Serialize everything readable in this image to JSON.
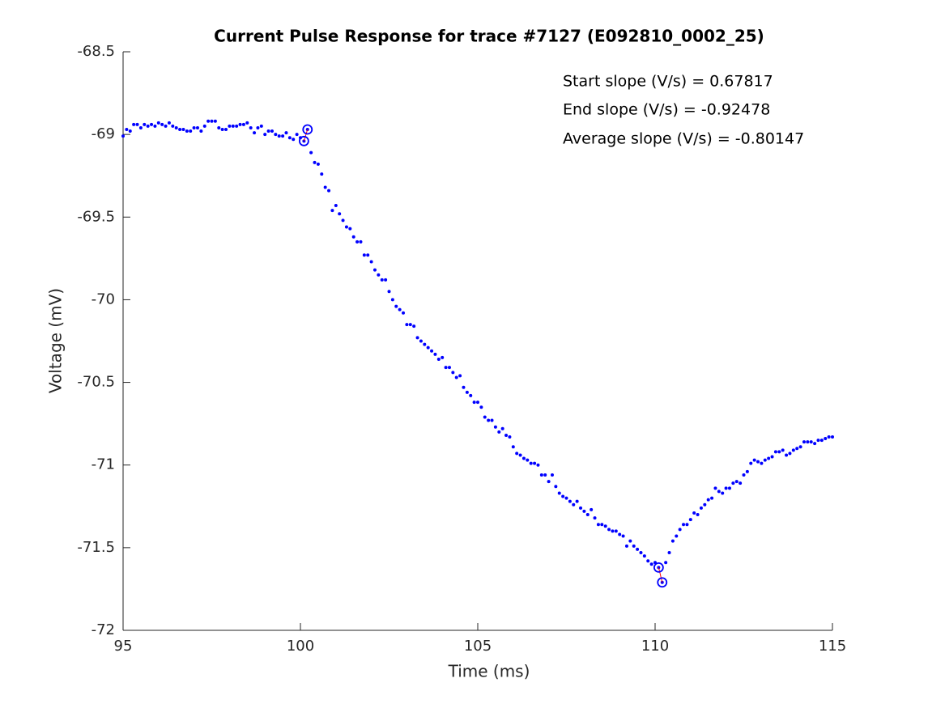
{
  "chart_data": {
    "type": "scatter",
    "title": "Current Pulse Response for trace #7127 (E092810_0002_25)",
    "xlabel": "Time (ms)",
    "ylabel": "Voltage (mV)",
    "annotations": [
      "Start slope (V/s) = 0.67817",
      "End slope (V/s) = -0.92478",
      "Average slope (V/s) = -0.80147"
    ],
    "xlim": [
      95,
      115
    ],
    "xticks": [
      95,
      100,
      105,
      110,
      115
    ],
    "ylim": [
      -72,
      -68.5
    ],
    "yticks": [
      -68.5,
      -69,
      -69.5,
      -70,
      -70.5,
      -71,
      -71.5,
      -72
    ],
    "grid": false,
    "series": [
      {
        "color": "#0000ff",
        "marker": "dot",
        "x": [
          95.0,
          95.1,
          95.2,
          95.3,
          95.4,
          95.5,
          95.6,
          95.7,
          95.8,
          95.9,
          96.0,
          96.1,
          96.2,
          96.3,
          96.4,
          96.5,
          96.6,
          96.7,
          96.8,
          96.9,
          97.0,
          97.1,
          97.2,
          97.3,
          97.4,
          97.5,
          97.6,
          97.7,
          97.8,
          97.9,
          98.0,
          98.1,
          98.2,
          98.3,
          98.4,
          98.5,
          98.6,
          98.7,
          98.8,
          98.9,
          99.0,
          99.1,
          99.2,
          99.3,
          99.4,
          99.5,
          99.6,
          99.7,
          99.8,
          99.9,
          100.0,
          100.1,
          100.2,
          100.3,
          100.4,
          100.5,
          100.6,
          100.7,
          100.8,
          100.9,
          101.0,
          101.1,
          101.2,
          101.3,
          101.4,
          101.5,
          101.6,
          101.7,
          101.8,
          101.9,
          102.0,
          102.1,
          102.2,
          102.3,
          102.4,
          102.5,
          102.6,
          102.7,
          102.8,
          102.9,
          103.0,
          103.1,
          103.2,
          103.3,
          103.4,
          103.5,
          103.6,
          103.7,
          103.8,
          103.9,
          104.0,
          104.1,
          104.2,
          104.3,
          104.4,
          104.5,
          104.6,
          104.7,
          104.8,
          104.9,
          105.0,
          105.1,
          105.2,
          105.3,
          105.4,
          105.5,
          105.6,
          105.7,
          105.8,
          105.9,
          106.0,
          106.1,
          106.2,
          106.3,
          106.4,
          106.5,
          106.6,
          106.7,
          106.8,
          106.9,
          107.0,
          107.1,
          107.2,
          107.3,
          107.4,
          107.5,
          107.6,
          107.7,
          107.8,
          107.9,
          108.0,
          108.1,
          108.2,
          108.3,
          108.4,
          108.5,
          108.6,
          108.7,
          108.8,
          108.9,
          109.0,
          109.1,
          109.2,
          109.3,
          109.4,
          109.5,
          109.6,
          109.7,
          109.8,
          109.9,
          110.0,
          110.1,
          110.2,
          110.3,
          110.4,
          110.5,
          110.6,
          110.7,
          110.8,
          110.9,
          111.0,
          111.1,
          111.2,
          111.3,
          111.4,
          111.5,
          111.6,
          111.7,
          111.8,
          111.9,
          112.0,
          112.1,
          112.2,
          112.3,
          112.4,
          112.5,
          112.6,
          112.7,
          112.8,
          112.9,
          113.0,
          113.1,
          113.2,
          113.3,
          113.4,
          113.5,
          113.6,
          113.7,
          113.8,
          113.9,
          114.0,
          114.1,
          114.2,
          114.3,
          114.4,
          114.5,
          114.6,
          114.7,
          114.8,
          114.9,
          115.0
        ],
        "values": [
          -69.01,
          -68.97,
          -68.98,
          -68.94,
          -68.94,
          -68.96,
          -68.94,
          -68.95,
          -68.94,
          -68.95,
          -68.93,
          -68.94,
          -68.95,
          -68.93,
          -68.95,
          -68.96,
          -68.97,
          -68.97,
          -68.98,
          -68.98,
          -68.96,
          -68.96,
          -68.98,
          -68.95,
          -68.92,
          -68.92,
          -68.92,
          -68.96,
          -68.97,
          -68.97,
          -68.95,
          -68.95,
          -68.95,
          -68.94,
          -68.94,
          -68.93,
          -68.96,
          -68.99,
          -68.96,
          -68.95,
          -69.0,
          -68.98,
          -68.98,
          -69.0,
          -69.01,
          -69.01,
          -68.99,
          -69.02,
          -69.03,
          -69.0,
          -69.02,
          -69.04,
          -68.97,
          -69.11,
          -69.17,
          -69.18,
          -69.24,
          -69.32,
          -69.34,
          -69.46,
          -69.43,
          -69.48,
          -69.52,
          -69.56,
          -69.57,
          -69.62,
          -69.65,
          -69.65,
          -69.73,
          -69.73,
          -69.77,
          -69.82,
          -69.85,
          -69.88,
          -69.88,
          -69.95,
          -70.0,
          -70.04,
          -70.06,
          -70.08,
          -70.15,
          -70.15,
          -70.16,
          -70.23,
          -70.25,
          -70.27,
          -70.29,
          -70.31,
          -70.33,
          -70.36,
          -70.35,
          -70.41,
          -70.41,
          -70.44,
          -70.47,
          -70.46,
          -70.53,
          -70.56,
          -70.58,
          -70.62,
          -70.62,
          -70.65,
          -70.71,
          -70.73,
          -70.73,
          -70.77,
          -70.8,
          -70.78,
          -70.82,
          -70.83,
          -70.89,
          -70.93,
          -70.94,
          -70.96,
          -70.97,
          -70.99,
          -70.99,
          -71.0,
          -71.06,
          -71.06,
          -71.1,
          -71.06,
          -71.13,
          -71.17,
          -71.19,
          -71.2,
          -71.22,
          -71.24,
          -71.22,
          -71.26,
          -71.28,
          -71.3,
          -71.27,
          -71.32,
          -71.36,
          -71.36,
          -71.37,
          -71.39,
          -71.4,
          -71.4,
          -71.42,
          -71.43,
          -71.49,
          -71.46,
          -71.49,
          -71.51,
          -71.53,
          -71.55,
          -71.58,
          -71.6,
          -71.59,
          -71.62,
          -71.71,
          -71.59,
          -71.53,
          -71.46,
          -71.43,
          -71.39,
          -71.36,
          -71.36,
          -71.33,
          -71.29,
          -71.3,
          -71.26,
          -71.24,
          -71.21,
          -71.2,
          -71.14,
          -71.16,
          -71.17,
          -71.14,
          -71.14,
          -71.11,
          -71.1,
          -71.11,
          -71.06,
          -71.04,
          -70.99,
          -70.97,
          -70.98,
          -70.99,
          -70.97,
          -70.96,
          -70.95,
          -70.92,
          -70.92,
          -70.91,
          -70.94,
          -70.93,
          -70.91,
          -70.9,
          -70.89,
          -70.86,
          -70.86,
          -70.86,
          -70.87,
          -70.85,
          -70.85,
          -70.84,
          -70.83,
          -70.83
        ]
      },
      {
        "color": "#0000ff",
        "marker": "circle",
        "line_color": "#ff0000",
        "x": [
          100.1,
          100.2,
          110.1,
          110.2
        ],
        "values": [
          -69.04,
          -68.97,
          -71.62,
          -71.71
        ]
      }
    ]
  }
}
